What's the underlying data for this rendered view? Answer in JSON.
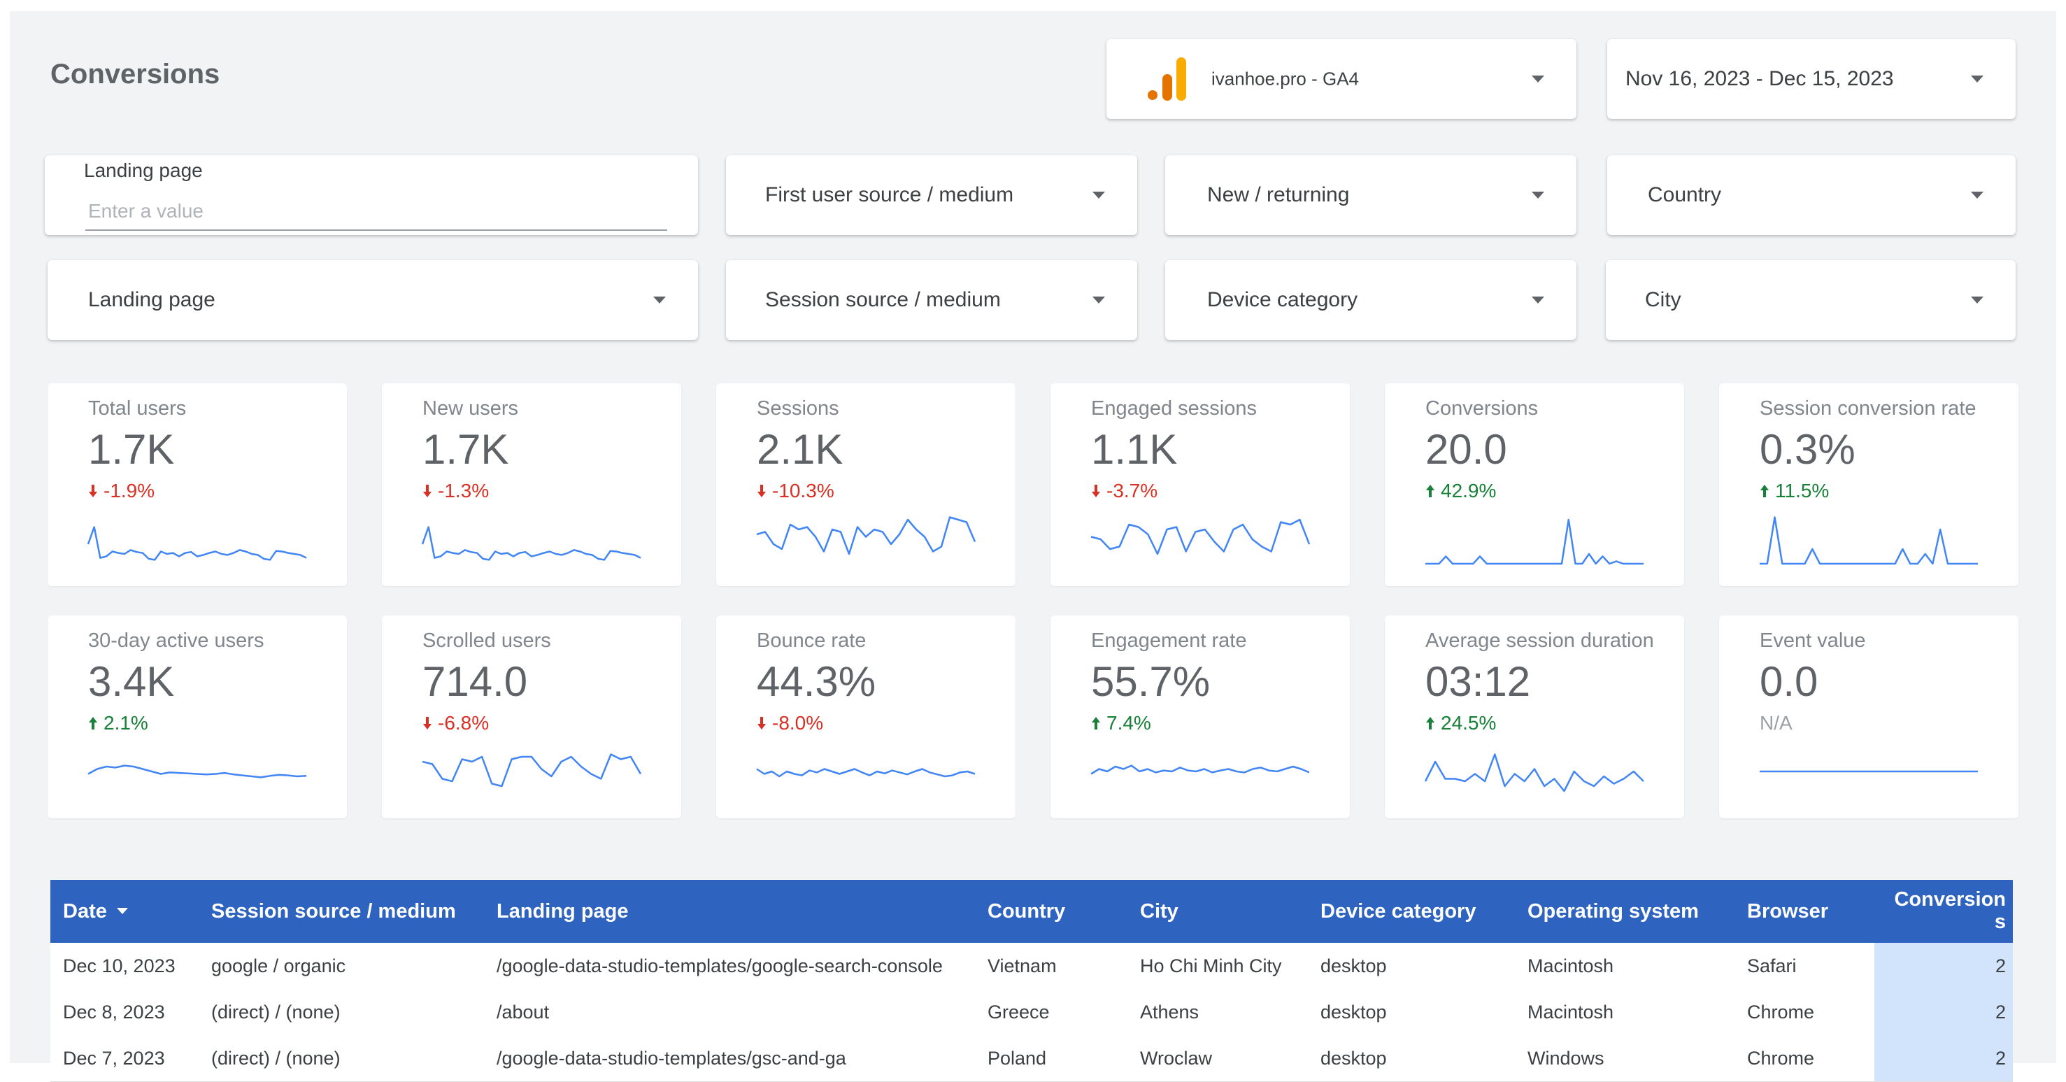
{
  "header": {
    "title": "Conversions",
    "data_source": "ivanhoe.pro - GA4",
    "date_range": "Nov 16, 2023 - Dec 15, 2023"
  },
  "filters": {
    "landing_page_input": {
      "label": "Landing page",
      "placeholder": "Enter a value"
    },
    "row1": [
      "First user source / medium",
      "New / returning",
      "Country"
    ],
    "row2": [
      "Landing page",
      "Session source / medium",
      "Device category",
      "City"
    ]
  },
  "colors": {
    "accent": "#2f63c0",
    "sparkline": "#4285f4",
    "positive": "#188038",
    "negative": "#d93025",
    "highlight_cell": "#d2e3fc"
  },
  "metrics": [
    {
      "label": "Total users",
      "value": "1.7K",
      "delta": "-1.9%",
      "direction": "down",
      "spark": [
        0.4,
        0.75,
        0.12,
        0.15,
        0.25,
        0.22,
        0.2,
        0.28,
        0.24,
        0.22,
        0.1,
        0.08,
        0.25,
        0.2,
        0.22,
        0.15,
        0.22,
        0.24,
        0.15,
        0.18,
        0.22,
        0.25,
        0.2,
        0.18,
        0.22,
        0.28,
        0.25,
        0.2,
        0.18,
        0.1,
        0.08,
        0.26,
        0.25,
        0.22,
        0.2,
        0.18,
        0.12
      ]
    },
    {
      "label": "New users",
      "value": "1.7K",
      "delta": "-1.3%",
      "direction": "down",
      "spark": [
        0.4,
        0.75,
        0.12,
        0.15,
        0.25,
        0.22,
        0.2,
        0.28,
        0.24,
        0.22,
        0.1,
        0.08,
        0.25,
        0.2,
        0.22,
        0.15,
        0.22,
        0.24,
        0.15,
        0.18,
        0.22,
        0.25,
        0.2,
        0.18,
        0.22,
        0.28,
        0.25,
        0.2,
        0.18,
        0.1,
        0.08,
        0.26,
        0.25,
        0.22,
        0.2,
        0.18,
        0.12
      ]
    },
    {
      "label": "Sessions",
      "value": "2.1K",
      "delta": "-10.3%",
      "direction": "down",
      "spark": [
        0.6,
        0.65,
        0.4,
        0.3,
        0.8,
        0.7,
        0.75,
        0.55,
        0.25,
        0.7,
        0.65,
        0.2,
        0.75,
        0.55,
        0.7,
        0.65,
        0.4,
        0.6,
        0.9,
        0.7,
        0.55,
        0.25,
        0.35,
        0.95,
        0.9,
        0.85,
        0.45
      ]
    },
    {
      "label": "Engaged sessions",
      "value": "1.1K",
      "delta": "-3.7%",
      "direction": "down",
      "spark": [
        0.55,
        0.5,
        0.3,
        0.35,
        0.8,
        0.75,
        0.6,
        0.2,
        0.7,
        0.75,
        0.25,
        0.65,
        0.7,
        0.45,
        0.25,
        0.7,
        0.8,
        0.5,
        0.35,
        0.25,
        0.85,
        0.8,
        0.9,
        0.4
      ]
    },
    {
      "label": "Conversions",
      "value": "20.0",
      "delta": "42.9%",
      "direction": "up",
      "spark": [
        0,
        0,
        0,
        0.15,
        0,
        0,
        0,
        0,
        0.15,
        0,
        0,
        0,
        0,
        0,
        0,
        0,
        0,
        0,
        0,
        0,
        0,
        0.9,
        0,
        0,
        0.2,
        0,
        0.15,
        0,
        0.05,
        0,
        0,
        0,
        0
      ]
    },
    {
      "label": "Session conversion rate",
      "value": "0.3%",
      "delta": "11.5%",
      "direction": "up",
      "spark": [
        0,
        0,
        0.95,
        0,
        0,
        0,
        0,
        0.3,
        0,
        0,
        0,
        0,
        0,
        0,
        0,
        0,
        0,
        0,
        0,
        0.3,
        0,
        0,
        0.2,
        0,
        0.7,
        0,
        0,
        0,
        0,
        0
      ]
    },
    {
      "label": "30-day active users",
      "value": "3.4K",
      "delta": "2.1%",
      "direction": "up",
      "spark": [
        0.45,
        0.55,
        0.6,
        0.58,
        0.62,
        0.6,
        0.55,
        0.5,
        0.45,
        0.48,
        0.47,
        0.46,
        0.45,
        0.44,
        0.45,
        0.47,
        0.44,
        0.42,
        0.4,
        0.38,
        0.41,
        0.43,
        0.42,
        0.4,
        0.41
      ]
    },
    {
      "label": "Scrolled users",
      "value": "714.0",
      "delta": "-6.8%",
      "direction": "down",
      "spark": [
        0.7,
        0.65,
        0.35,
        0.3,
        0.75,
        0.7,
        0.8,
        0.25,
        0.2,
        0.75,
        0.8,
        0.8,
        0.55,
        0.4,
        0.7,
        0.8,
        0.6,
        0.45,
        0.35,
        0.85,
        0.75,
        0.8,
        0.45
      ]
    },
    {
      "label": "Bounce rate",
      "value": "44.3%",
      "delta": "-8.0%",
      "direction": "down",
      "spark": [
        0.55,
        0.45,
        0.5,
        0.4,
        0.5,
        0.45,
        0.42,
        0.52,
        0.48,
        0.55,
        0.5,
        0.45,
        0.5,
        0.55,
        0.48,
        0.42,
        0.5,
        0.46,
        0.52,
        0.48,
        0.44,
        0.5,
        0.55,
        0.48,
        0.44,
        0.4,
        0.42,
        0.48,
        0.5,
        0.45
      ]
    },
    {
      "label": "Engagement rate",
      "value": "55.7%",
      "delta": "7.4%",
      "direction": "up",
      "spark": [
        0.45,
        0.55,
        0.5,
        0.6,
        0.55,
        0.62,
        0.5,
        0.55,
        0.48,
        0.52,
        0.5,
        0.58,
        0.52,
        0.5,
        0.55,
        0.48,
        0.52,
        0.55,
        0.5,
        0.48,
        0.55,
        0.58,
        0.52,
        0.5,
        0.55,
        0.6,
        0.55,
        0.48
      ]
    },
    {
      "label": "Average session duration",
      "value": "03:12",
      "delta": "24.5%",
      "direction": "up",
      "spark": [
        0.3,
        0.7,
        0.35,
        0.35,
        0.3,
        0.45,
        0.3,
        0.85,
        0.2,
        0.45,
        0.3,
        0.55,
        0.2,
        0.35,
        0.1,
        0.5,
        0.3,
        0.2,
        0.4,
        0.25,
        0.35,
        0.5,
        0.3
      ]
    },
    {
      "label": "Event value",
      "value": "0.0",
      "delta": "N/A",
      "direction": "na",
      "spark": [
        0.5,
        0.5
      ]
    }
  ],
  "table": {
    "headers": [
      "Date",
      "Session source / medium",
      "Landing page",
      "Country",
      "City",
      "Device category",
      "Operating system",
      "Browser",
      "Conversions"
    ],
    "sort_column": "Date",
    "rows": [
      [
        "Dec 10, 2023",
        "google / organic",
        "/google-data-studio-templates/google-search-console",
        "Vietnam",
        "Ho Chi Minh City",
        "desktop",
        "Macintosh",
        "Safari",
        "2"
      ],
      [
        "Dec 8, 2023",
        "(direct) / (none)",
        "/about",
        "Greece",
        "Athens",
        "desktop",
        "Macintosh",
        "Chrome",
        "2"
      ],
      [
        "Dec 7, 2023",
        "(direct) / (none)",
        "/google-data-studio-templates/gsc-and-ga",
        "Poland",
        "Wroclaw",
        "desktop",
        "Windows",
        "Chrome",
        "2"
      ]
    ]
  }
}
